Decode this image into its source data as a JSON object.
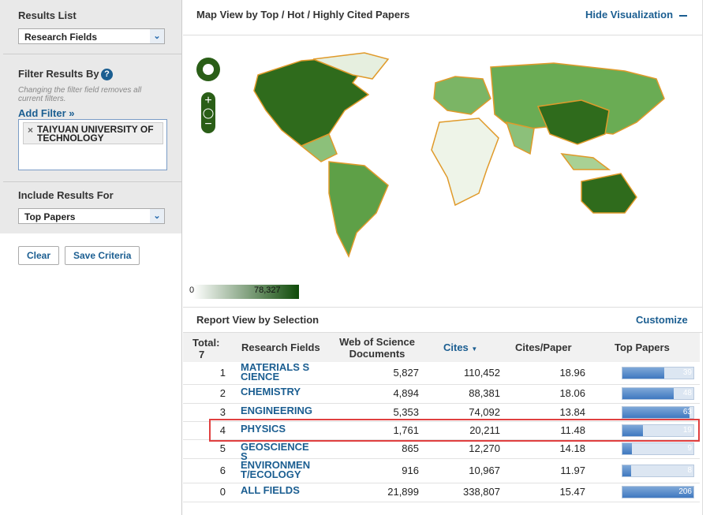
{
  "sidebar": {
    "results_list_label": "Results List",
    "results_list_value": "Research Fields",
    "filter_label": "Filter Results By",
    "filter_help": "?",
    "filter_note": "Changing the filter field removes all current filters.",
    "add_filter": "Add Filter »",
    "filter_tag": "TAIYUAN UNIVERSITY OF TECHNOLOGY",
    "include_label": "Include Results For",
    "include_value": "Top Papers",
    "buttons": [
      "Clear",
      "Save Criteria"
    ]
  },
  "map": {
    "title": "Map View by Top / Hot / Highly Cited Papers",
    "hide": "Hide Visualization",
    "legend_min": "0",
    "legend_max": "78,327"
  },
  "report": {
    "title": "Report View by Selection",
    "customize": "Customize",
    "total_label": "Total:",
    "total": 7,
    "headers": [
      "Research Fields",
      "Web of Science Documents",
      "Cites",
      "Cites/Paper",
      "Top Papers"
    ],
    "rows": [
      [
        1,
        "MATERIALS SCIENCE",
        "5,827",
        "110,452",
        "18.96",
        39
      ],
      [
        2,
        "CHEMISTRY",
        "4,894",
        "88,381",
        "18.06",
        48
      ],
      [
        3,
        "ENGINEERING",
        "5,353",
        "74,092",
        "13.84",
        63
      ],
      [
        4,
        "PHYSICS",
        "1,761",
        "20,211",
        "11.48",
        19
      ],
      [
        5,
        "GEOSCIENCES",
        "865",
        "12,270",
        "14.18",
        9
      ],
      [
        6,
        "ENVIRONMENT/ECOLOGY",
        "916",
        "10,967",
        "11.97",
        8
      ],
      [
        0,
        "ALL FIELDS",
        "21,899",
        "338,807",
        "15.47",
        206
      ]
    ]
  }
}
